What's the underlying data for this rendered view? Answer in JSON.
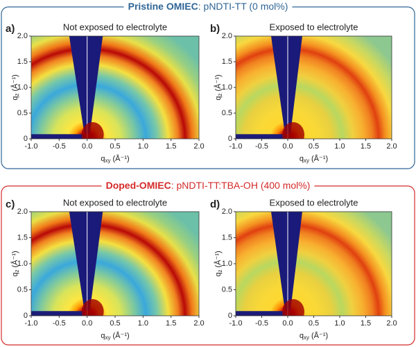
{
  "groups": [
    {
      "title_bold": "Pristine OMIEC",
      "title_rest": ": pNDTI-TT (0 mol%)",
      "color": "#2f6596",
      "panels": [
        {
          "label": "a)",
          "subtitle": "Not exposed to electrolyte"
        },
        {
          "label": "b)",
          "subtitle": "Exposed to electrolyte"
        }
      ]
    },
    {
      "title_bold": "Doped-OMIEC",
      "title_rest": ": pNDTI-TT:TBA-OH (400 mol%)",
      "color": "#d42a2a",
      "panels": [
        {
          "label": "c)",
          "subtitle": "Not exposed to electrolyte"
        },
        {
          "label": "d)",
          "subtitle": "Exposed to electrolyte"
        }
      ]
    }
  ],
  "x_ticks": [
    "-1.0",
    "-0.5",
    "0.0",
    "0.5",
    "1.0",
    "1.5",
    "2.0"
  ],
  "y_ticks": [
    "0",
    "0.5",
    "1.0",
    "1.5",
    "2.0"
  ],
  "x_label": {
    "symbol": "q",
    "subscript": "xy",
    "unit": " (Å⁻¹)"
  },
  "y_label": {
    "symbol": "q",
    "subscript": "z",
    "unit": " (Å⁻¹)"
  }
}
